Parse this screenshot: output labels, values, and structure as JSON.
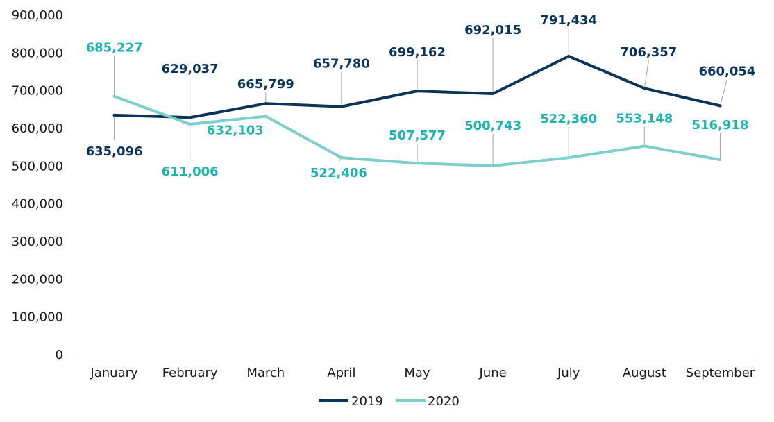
{
  "chart_data": {
    "type": "line",
    "title": "",
    "xlabel": "",
    "ylabel": "",
    "categories": [
      "January",
      "February",
      "March",
      "April",
      "May",
      "June",
      "July",
      "August",
      "September"
    ],
    "ylim": [
      0,
      900000
    ],
    "yticks": [
      0,
      100000,
      200000,
      300000,
      400000,
      500000,
      600000,
      700000,
      800000,
      900000
    ],
    "ytick_labels": [
      "0",
      "100,000",
      "200,000",
      "300,000",
      "400,000",
      "500,000",
      "600,000",
      "700,000",
      "800,000",
      "900,000"
    ],
    "grid": false,
    "legend_position": "bottom",
    "series": [
      {
        "name": "2019",
        "color": "#0b3558",
        "values": [
          635096,
          629037,
          665799,
          657780,
          699162,
          692015,
          791434,
          706357,
          660054
        ],
        "labels": [
          "635,096",
          "629,037",
          "665,799",
          "657,780",
          "699,162",
          "692,015",
          "791,434",
          "706,357",
          "660,054"
        ]
      },
      {
        "name": "2020",
        "color": "#7ecfcb",
        "label_color": "#1fb3ad",
        "values": [
          685227,
          611006,
          632103,
          522406,
          507577,
          500743,
          522360,
          553148,
          516918
        ],
        "labels": [
          "685,227",
          "611,006",
          "632,103",
          "522,406",
          "507,577",
          "500,743",
          "522,360",
          "553,148",
          "516,918"
        ]
      }
    ]
  }
}
